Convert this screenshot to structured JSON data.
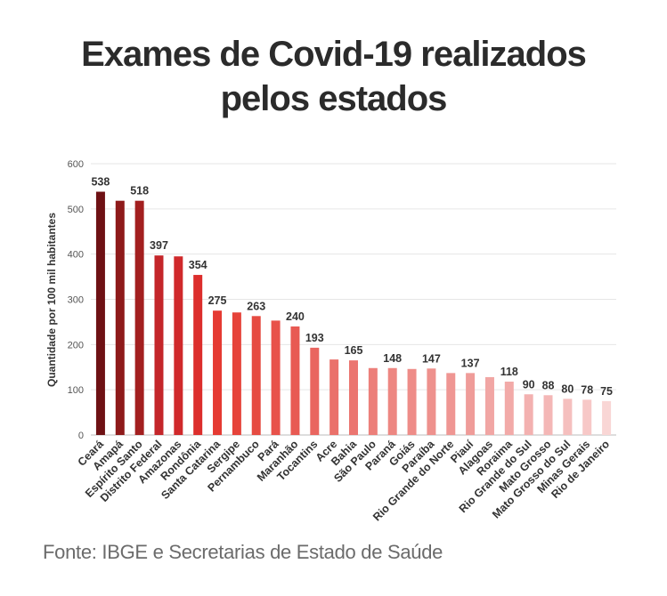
{
  "header": {
    "title_line1": "Exames de Covid-19 realizados",
    "title_line2": "pelos estados"
  },
  "source": "Fonte: IBGE e Secretarias de Estado de Saúde",
  "chart_data": {
    "type": "bar",
    "title": "Exames de Covid-19 realizados pelos estados",
    "xlabel": "",
    "ylabel": "Quantidade por 100 mil habitantes",
    "ylim": [
      0,
      600
    ],
    "yticks": [
      0,
      100,
      200,
      300,
      400,
      500,
      600
    ],
    "grid": true,
    "categories": [
      "Ceará",
      "Amapá",
      "Espírito Santo",
      "Distrito Federal",
      "Amazonas",
      "Rondônia",
      "Santa Catarina",
      "Sergipe",
      "Pernambuco",
      "Pará",
      "Maranhão",
      "Tocantins",
      "Acre",
      "Bahia",
      "São Paulo",
      "Paraná",
      "Goiás",
      "Paraíba",
      "Rio Grande do Norte",
      "Piauí",
      "Alagoas",
      "Roraima",
      "Rio Grande do Sul",
      "Mato Grosso",
      "Mato Grosso do Sul",
      "Minas Gerais",
      "Rio de Janeiro"
    ],
    "values": [
      538,
      518,
      518,
      397,
      395,
      354,
      275,
      271,
      263,
      253,
      240,
      193,
      167,
      165,
      148,
      148,
      146,
      147,
      137,
      137,
      128,
      118,
      90,
      88,
      80,
      78,
      75
    ],
    "labels": [
      "538",
      "",
      "518",
      "397",
      "",
      "354",
      "275",
      "",
      "263",
      "",
      "240",
      "193",
      "",
      "165",
      "",
      "148",
      "",
      "147",
      "",
      "137",
      "",
      "118",
      "90",
      "88",
      "80",
      "78",
      "75"
    ],
    "colors": [
      "#6e1114",
      "#8e1a1a",
      "#a31f1f",
      "#c4262a",
      "#d0292b",
      "#dc2e2c",
      "#e53a32",
      "#e6433a",
      "#e64b42",
      "#e8524a",
      "#e85a53",
      "#e9655f",
      "#ea716b",
      "#eb7570",
      "#ec7f7a",
      "#ed8782",
      "#ee8c88",
      "#ee918d",
      "#ef9693",
      "#ef9c99",
      "#f1a6a4",
      "#f2aaa8",
      "#f3b1b0",
      "#f4b7b6",
      "#f5bfbe",
      "#f7c8c7",
      "#f9d6d5"
    ]
  }
}
